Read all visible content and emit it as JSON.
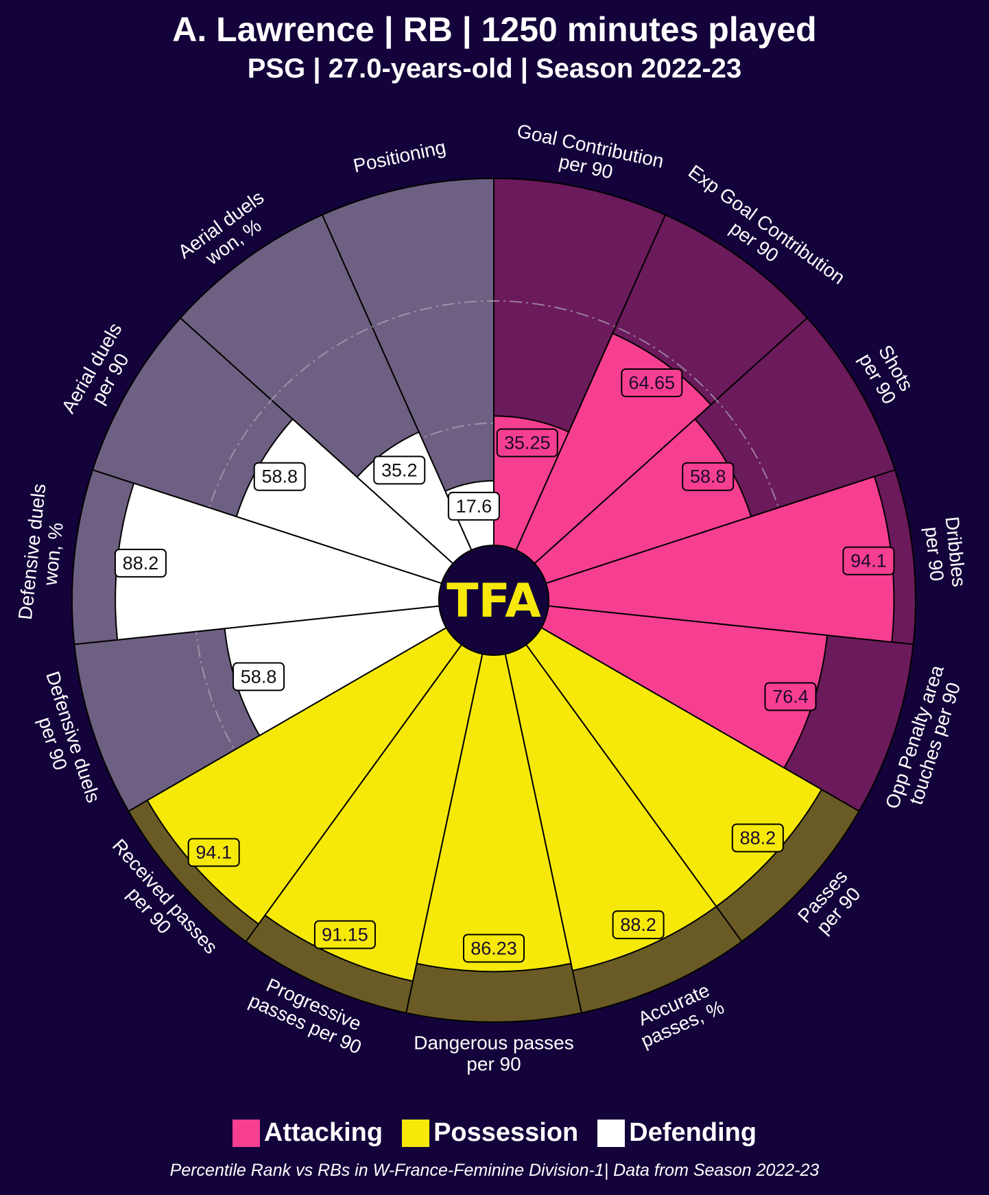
{
  "header": {
    "title": "A. Lawrence | RB | 1250 minutes played",
    "subtitle": "PSG | 27.0-years-old | Season 2022-23"
  },
  "logo_text": "TFA",
  "legend": [
    {
      "label": "Attacking",
      "color": "#f73f92"
    },
    {
      "label": "Possession",
      "color": "#f6e90a"
    },
    {
      "label": "Defending",
      "color": "#ffffff"
    }
  ],
  "footnote": "Percentile Rank vs RBs in W-France-Feminine Division-1| Data from Season 2022-23",
  "chart_data": {
    "type": "polar-bar",
    "value_range": [
      0,
      100
    ],
    "categories": {
      "Attacking": {
        "color": "#f73f92",
        "background": "#6b1a5c",
        "label_box_text": "#1a0a30"
      },
      "Possession": {
        "color": "#f6e90a",
        "background": "#6a5a25",
        "label_box_text": "#1a0a30"
      },
      "Defending": {
        "color": "#ffffff",
        "background": "#6e6082",
        "label_box_text": "#111111"
      }
    },
    "metrics": [
      {
        "label": [
          "Goal Contribution",
          "per 90"
        ],
        "value": 35.25,
        "display": "35.25",
        "category": "Attacking"
      },
      {
        "label": [
          "Exp Goal Contribution",
          "per 90"
        ],
        "value": 64.65,
        "display": "64.65",
        "category": "Attacking"
      },
      {
        "label": [
          "Shots",
          "per 90"
        ],
        "value": 58.8,
        "display": "58.8",
        "category": "Attacking"
      },
      {
        "label": [
          "Dribbles",
          "per 90"
        ],
        "value": 94.1,
        "display": "94.1",
        "category": "Attacking"
      },
      {
        "label": [
          "Opp Penalty area",
          "touches per 90"
        ],
        "value": 76.4,
        "display": "76.4",
        "category": "Attacking"
      },
      {
        "label": [
          "Passes",
          "per 90"
        ],
        "value": 88.2,
        "display": "88.2",
        "category": "Possession"
      },
      {
        "label": [
          "Accurate",
          "passes, %"
        ],
        "value": 88.2,
        "display": "88.2",
        "category": "Possession"
      },
      {
        "label": [
          "Dangerous passes",
          "per 90"
        ],
        "value": 86.23,
        "display": "86.23",
        "category": "Possession"
      },
      {
        "label": [
          "Progressive",
          "passes per 90"
        ],
        "value": 91.15,
        "display": "91.15",
        "category": "Possession"
      },
      {
        "label": [
          "Received passes",
          "per 90"
        ],
        "value": 94.1,
        "display": "94.1",
        "category": "Possession"
      },
      {
        "label": [
          "Defensive duels",
          "per 90"
        ],
        "value": 58.8,
        "display": "58.8",
        "category": "Defending"
      },
      {
        "label": [
          "Defensive duels",
          "won, %"
        ],
        "value": 88.2,
        "display": "88.2",
        "category": "Defending"
      },
      {
        "label": [
          "Aerial duels",
          "per 90"
        ],
        "value": 58.8,
        "display": "58.8",
        "category": "Defending"
      },
      {
        "label": [
          "Aerial duels",
          "won, %"
        ],
        "value": 35.2,
        "display": "35.2",
        "category": "Defending"
      },
      {
        "label": [
          "Positioning"
        ],
        "value": 17.6,
        "display": "17.6",
        "category": "Defending"
      }
    ]
  }
}
